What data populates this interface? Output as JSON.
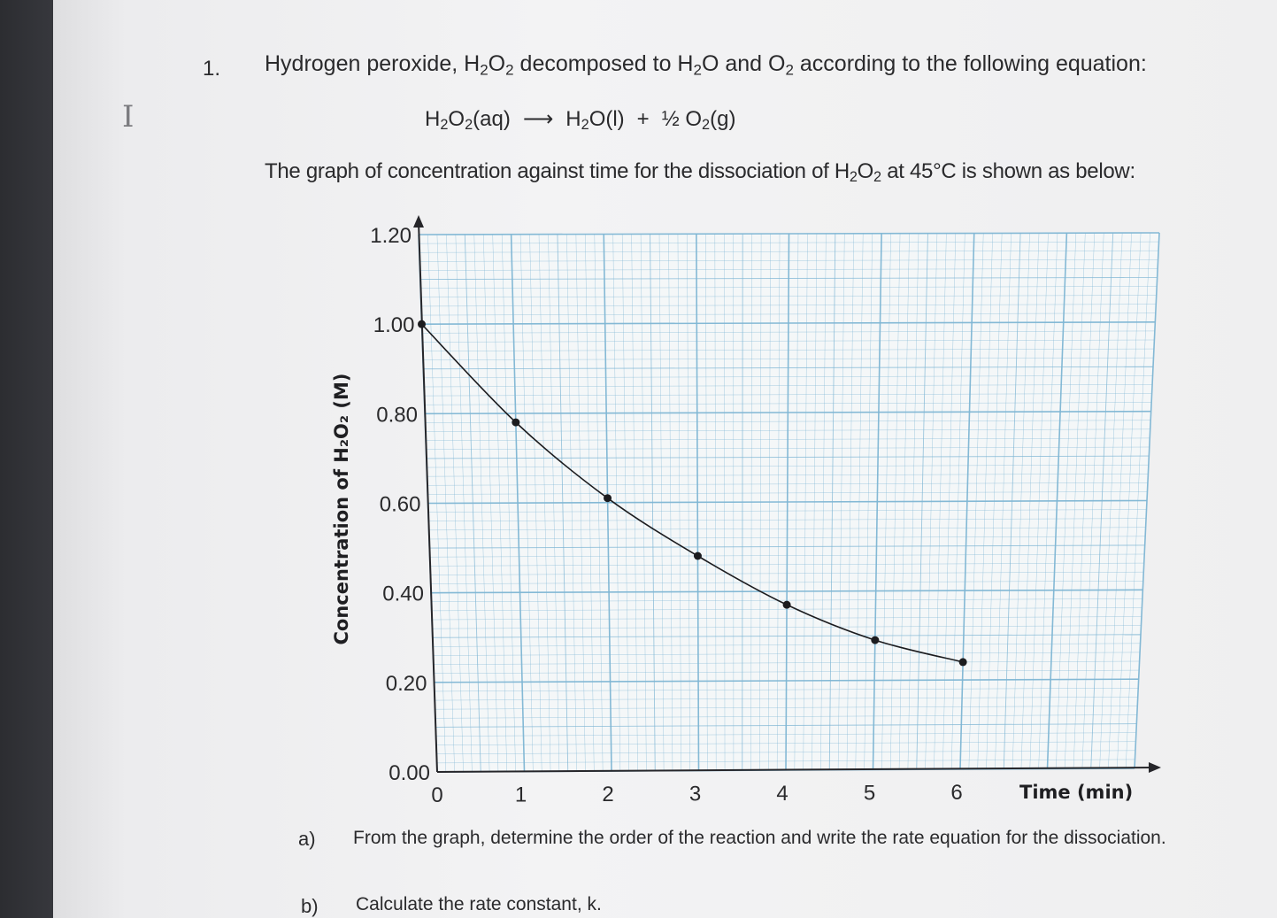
{
  "question": {
    "number": "1.",
    "intro": {
      "pre": "Hydrogen peroxide, H",
      "s1": "2",
      "mid1": "O",
      "s2": "2",
      "mid2": " decomposed to H",
      "s3": "2",
      "mid3": "O and O",
      "s4": "2",
      "post": " according to the following equation:"
    },
    "equation": {
      "r1": "H",
      "rs1": "2",
      "r2": "O",
      "rs2": "2",
      "r3": "(aq)",
      "arrow": "⟶",
      "p1": "H",
      "ps1": "2",
      "p2": "O(l)",
      "plus": "+",
      "p3": "½ O",
      "ps2": "2",
      "p4": "(g)"
    },
    "graph_description": {
      "pre": "The graph of concentration against time for the dissociation of H",
      "s1": "2",
      "mid": "O",
      "s2": "2",
      "post": " at 45°C is shown as below:"
    }
  },
  "parts": [
    {
      "label": "a)",
      "text": "From the graph, determine the order of the reaction and write the rate equation for the dissociation."
    },
    {
      "label": "b)",
      "text": "Calculate the rate constant, k."
    }
  ],
  "chart_data": {
    "type": "line",
    "title": "",
    "xlabel": "Time (min)",
    "ylabel": "Concentration of H₂O₂ (M)",
    "xlim": [
      0,
      8
    ],
    "ylim": [
      0,
      1.2
    ],
    "x_ticks": [
      "0",
      "1",
      "2",
      "3",
      "4",
      "5",
      "6"
    ],
    "y_ticks": [
      "0.00",
      "0.20",
      "0.40",
      "0.60",
      "0.80",
      "1.00",
      "1.20"
    ],
    "grid": true,
    "series": [
      {
        "x": [
          0,
          1,
          2,
          3,
          4,
          5,
          6
        ],
        "values": [
          1.0,
          0.78,
          0.61,
          0.48,
          0.37,
          0.29,
          0.24
        ],
        "markers": true,
        "color": "#1c1c1f"
      }
    ],
    "grid_color": "#7fb6d4"
  },
  "icons": {
    "cursor": "text-cursor-icon"
  }
}
